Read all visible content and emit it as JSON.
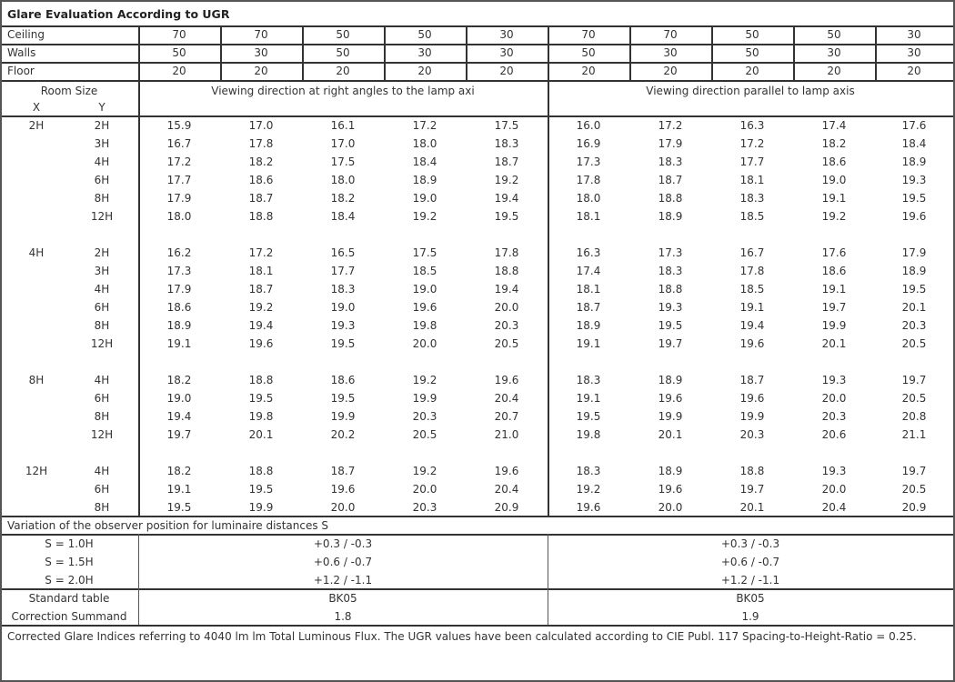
{
  "title": "Glare Evaluation According to UGR",
  "reflectances": {
    "ceiling": {
      "label": "Ceiling",
      "values": [
        "70",
        "70",
        "50",
        "50",
        "30",
        "70",
        "70",
        "50",
        "50",
        "30"
      ]
    },
    "walls": {
      "label": "Walls",
      "values": [
        "50",
        "30",
        "50",
        "30",
        "30",
        "50",
        "30",
        "50",
        "30",
        "30"
      ]
    },
    "floor": {
      "label": "Floor",
      "values": [
        "20",
        "20",
        "20",
        "20",
        "20",
        "20",
        "20",
        "20",
        "20",
        "20"
      ]
    }
  },
  "header": {
    "room_size": "Room Size",
    "x": "X",
    "y": "Y",
    "direction_right_angles": "Viewing direction at right angles to the lamp axi",
    "direction_parallel": "Viewing direction parallel to lamp axis"
  },
  "groups": [
    {
      "x": "2H",
      "rows": [
        {
          "y": "2H",
          "values": [
            "15.9",
            "17.0",
            "16.1",
            "17.2",
            "17.5",
            "16.0",
            "17.2",
            "16.3",
            "17.4",
            "17.6"
          ]
        },
        {
          "y": "3H",
          "values": [
            "16.7",
            "17.8",
            "17.0",
            "18.0",
            "18.3",
            "16.9",
            "17.9",
            "17.2",
            "18.2",
            "18.4"
          ]
        },
        {
          "y": "4H",
          "values": [
            "17.2",
            "18.2",
            "17.5",
            "18.4",
            "18.7",
            "17.3",
            "18.3",
            "17.7",
            "18.6",
            "18.9"
          ]
        },
        {
          "y": "6H",
          "values": [
            "17.7",
            "18.6",
            "18.0",
            "18.9",
            "19.2",
            "17.8",
            "18.7",
            "18.1",
            "19.0",
            "19.3"
          ]
        },
        {
          "y": "8H",
          "values": [
            "17.9",
            "18.7",
            "18.2",
            "19.0",
            "19.4",
            "18.0",
            "18.8",
            "18.3",
            "19.1",
            "19.5"
          ]
        },
        {
          "y": "12H",
          "values": [
            "18.0",
            "18.8",
            "18.4",
            "19.2",
            "19.5",
            "18.1",
            "18.9",
            "18.5",
            "19.2",
            "19.6"
          ]
        }
      ]
    },
    {
      "x": "4H",
      "rows": [
        {
          "y": "2H",
          "values": [
            "16.2",
            "17.2",
            "16.5",
            "17.5",
            "17.8",
            "16.3",
            "17.3",
            "16.7",
            "17.6",
            "17.9"
          ]
        },
        {
          "y": "3H",
          "values": [
            "17.3",
            "18.1",
            "17.7",
            "18.5",
            "18.8",
            "17.4",
            "18.3",
            "17.8",
            "18.6",
            "18.9"
          ]
        },
        {
          "y": "4H",
          "values": [
            "17.9",
            "18.7",
            "18.3",
            "19.0",
            "19.4",
            "18.1",
            "18.8",
            "18.5",
            "19.1",
            "19.5"
          ]
        },
        {
          "y": "6H",
          "values": [
            "18.6",
            "19.2",
            "19.0",
            "19.6",
            "20.0",
            "18.7",
            "19.3",
            "19.1",
            "19.7",
            "20.1"
          ]
        },
        {
          "y": "8H",
          "values": [
            "18.9",
            "19.4",
            "19.3",
            "19.8",
            "20.3",
            "18.9",
            "19.5",
            "19.4",
            "19.9",
            "20.3"
          ]
        },
        {
          "y": "12H",
          "values": [
            "19.1",
            "19.6",
            "19.5",
            "20.0",
            "20.5",
            "19.1",
            "19.7",
            "19.6",
            "20.1",
            "20.5"
          ]
        }
      ]
    },
    {
      "x": "8H",
      "rows": [
        {
          "y": "4H",
          "values": [
            "18.2",
            "18.8",
            "18.6",
            "19.2",
            "19.6",
            "18.3",
            "18.9",
            "18.7",
            "19.3",
            "19.7"
          ]
        },
        {
          "y": "6H",
          "values": [
            "19.0",
            "19.5",
            "19.5",
            "19.9",
            "20.4",
            "19.1",
            "19.6",
            "19.6",
            "20.0",
            "20.5"
          ]
        },
        {
          "y": "8H",
          "values": [
            "19.4",
            "19.8",
            "19.9",
            "20.3",
            "20.7",
            "19.5",
            "19.9",
            "19.9",
            "20.3",
            "20.8"
          ]
        },
        {
          "y": "12H",
          "values": [
            "19.7",
            "20.1",
            "20.2",
            "20.5",
            "21.0",
            "19.8",
            "20.1",
            "20.3",
            "20.6",
            "21.1"
          ]
        }
      ]
    },
    {
      "x": "12H",
      "rows": [
        {
          "y": "4H",
          "values": [
            "18.2",
            "18.8",
            "18.7",
            "19.2",
            "19.6",
            "18.3",
            "18.9",
            "18.8",
            "19.3",
            "19.7"
          ]
        },
        {
          "y": "6H",
          "values": [
            "19.1",
            "19.5",
            "19.6",
            "20.0",
            "20.4",
            "19.2",
            "19.6",
            "19.7",
            "20.0",
            "20.5"
          ]
        },
        {
          "y": "8H",
          "values": [
            "19.5",
            "19.9",
            "20.0",
            "20.3",
            "20.9",
            "19.6",
            "20.0",
            "20.1",
            "20.4",
            "20.9"
          ]
        }
      ]
    }
  ],
  "variation": {
    "title": "Variation of the observer position for luminaire distances S",
    "rows": [
      {
        "label": "S = 1.0H",
        "right_angles": "+0.3 / -0.3",
        "parallel": "+0.3 / -0.3"
      },
      {
        "label": "S = 1.5H",
        "right_angles": "+0.6 / -0.7",
        "parallel": "+0.6 / -0.7"
      },
      {
        "label": "S = 2.0H",
        "right_angles": "+1.2 / -1.1",
        "parallel": "+1.2 / -1.1"
      }
    ]
  },
  "standard": {
    "table_label": "Standard table",
    "table_right_angles": "BK05",
    "table_parallel": "BK05",
    "summand_label": "Correction Summand",
    "summand_right_angles": "1.8",
    "summand_parallel": "1.9"
  },
  "footer": "Corrected Glare Indices referring to 4040 lm lm Total Luminous Flux. The UGR values have been calculated according to CIE Publ. 117    Spacing-to-Height-Ratio = 0.25."
}
